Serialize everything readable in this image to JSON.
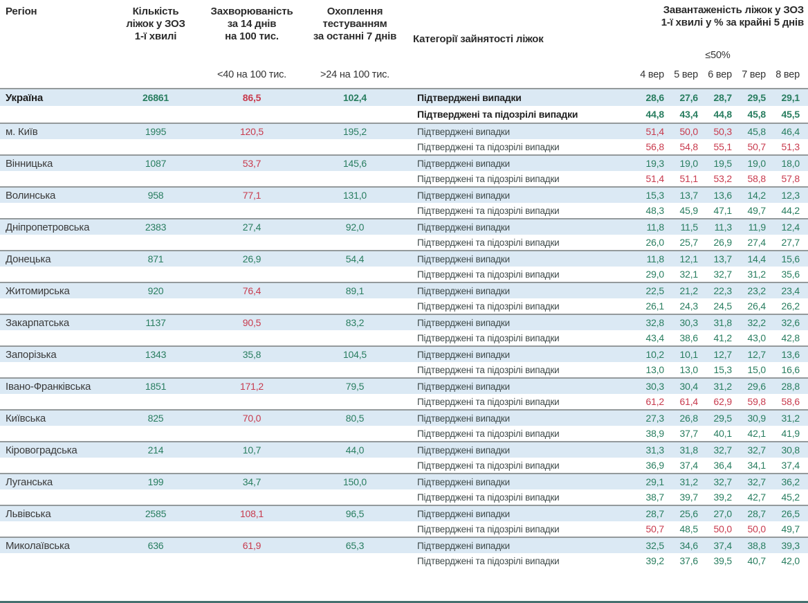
{
  "header": {
    "region": "Регіон",
    "beds_lines": [
      "Кількість",
      "ліжок у ЗОЗ",
      "1-ї хвилі"
    ],
    "incidence_lines": [
      "Захворюваність",
      "за 14 днів",
      "на 100 тис."
    ],
    "testing_lines": [
      "Охоплення",
      "тестуванням",
      "за останні 7 днів"
    ],
    "category": "Категорії зайнятості ліжок",
    "occupancy_lines": [
      "Завантаженість ліжок у ЗОЗ",
      "1-ї хвилі у % за крайні 5 днів"
    ],
    "occupancy_threshold": "≤50%",
    "incidence_threshold": "<40 на 100 тис.",
    "testing_threshold": ">24 на 100 тис.",
    "dates": [
      "4 вер",
      "5 вер",
      "6 вер",
      "7 вер",
      "8 вер"
    ]
  },
  "row_labels": {
    "confirmed": "Підтверджені випадки",
    "confirmed_suspected": "Підтверджені та підозрілі випадки"
  },
  "colors": {
    "green": "#287d5f",
    "red": "#c83a4d",
    "row_blue": "#dbe9f4",
    "separator": "#949a9c",
    "bottom_bar": "#44706f"
  },
  "rows": [
    {
      "region": "Україна",
      "bold": true,
      "beds": "26861",
      "incidence": {
        "v": "86,5",
        "c": "r"
      },
      "testing": {
        "v": "102,4",
        "c": "g"
      },
      "confirmed": {
        "values": [
          "28,6",
          "27,6",
          "28,7",
          "29,5",
          "29,1"
        ],
        "colors": "ggggg"
      },
      "suspected": {
        "values": [
          "44,8",
          "43,4",
          "44,8",
          "45,8",
          "45,5"
        ],
        "colors": "ggggg"
      }
    },
    {
      "region": "м. Київ",
      "bold": false,
      "beds": "1995",
      "incidence": {
        "v": "120,5",
        "c": "r"
      },
      "testing": {
        "v": "195,2",
        "c": "g"
      },
      "confirmed": {
        "values": [
          "51,4",
          "50,0",
          "50,3",
          "45,8",
          "46,4"
        ],
        "colors": "rrrgg"
      },
      "suspected": {
        "values": [
          "56,8",
          "54,8",
          "55,1",
          "50,7",
          "51,3"
        ],
        "colors": "rrrrr"
      }
    },
    {
      "region": "Вінницька",
      "bold": false,
      "beds": "1087",
      "incidence": {
        "v": "53,7",
        "c": "r"
      },
      "testing": {
        "v": "145,6",
        "c": "g"
      },
      "confirmed": {
        "values": [
          "19,3",
          "19,0",
          "19,5",
          "19,0",
          "18,0"
        ],
        "colors": "ggggg"
      },
      "suspected": {
        "values": [
          "51,4",
          "51,1",
          "53,2",
          "58,8",
          "57,8"
        ],
        "colors": "rrrrr"
      }
    },
    {
      "region": "Волинська",
      "bold": false,
      "beds": "958",
      "incidence": {
        "v": "77,1",
        "c": "r"
      },
      "testing": {
        "v": "131,0",
        "c": "g"
      },
      "confirmed": {
        "values": [
          "15,3",
          "13,7",
          "13,6",
          "14,2",
          "12,3"
        ],
        "colors": "ggggg"
      },
      "suspected": {
        "values": [
          "48,3",
          "45,9",
          "47,1",
          "49,7",
          "44,2"
        ],
        "colors": "ggggg"
      }
    },
    {
      "region": "Дніпропетровська",
      "bold": false,
      "beds": "2383",
      "incidence": {
        "v": "27,4",
        "c": "g"
      },
      "testing": {
        "v": "92,0",
        "c": "g"
      },
      "confirmed": {
        "values": [
          "11,8",
          "11,5",
          "11,3",
          "11,9",
          "12,4"
        ],
        "colors": "ggggg"
      },
      "suspected": {
        "values": [
          "26,0",
          "25,7",
          "26,9",
          "27,4",
          "27,7"
        ],
        "colors": "ggggg"
      }
    },
    {
      "region": "Донецька",
      "bold": false,
      "beds": "871",
      "incidence": {
        "v": "26,9",
        "c": "g"
      },
      "testing": {
        "v": "54,4",
        "c": "g"
      },
      "confirmed": {
        "values": [
          "11,8",
          "12,1",
          "13,7",
          "14,4",
          "15,6"
        ],
        "colors": "ggggg"
      },
      "suspected": {
        "values": [
          "29,0",
          "32,1",
          "32,7",
          "31,2",
          "35,6"
        ],
        "colors": "ggggg"
      }
    },
    {
      "region": "Житомирська",
      "bold": false,
      "beds": "920",
      "incidence": {
        "v": "76,4",
        "c": "r"
      },
      "testing": {
        "v": "89,1",
        "c": "g"
      },
      "confirmed": {
        "values": [
          "22,5",
          "21,2",
          "22,3",
          "23,2",
          "23,4"
        ],
        "colors": "ggggg"
      },
      "suspected": {
        "values": [
          "26,1",
          "24,3",
          "24,5",
          "26,4",
          "26,2"
        ],
        "colors": "ggggg"
      }
    },
    {
      "region": "Закарпатська",
      "bold": false,
      "beds": "1137",
      "incidence": {
        "v": "90,5",
        "c": "r"
      },
      "testing": {
        "v": "83,2",
        "c": "g"
      },
      "confirmed": {
        "values": [
          "32,8",
          "30,3",
          "31,8",
          "32,2",
          "32,6"
        ],
        "colors": "ggggg"
      },
      "suspected": {
        "values": [
          "43,4",
          "38,6",
          "41,2",
          "43,0",
          "42,8"
        ],
        "colors": "ggggg"
      }
    },
    {
      "region": "Запорізька",
      "bold": false,
      "beds": "1343",
      "incidence": {
        "v": "35,8",
        "c": "g"
      },
      "testing": {
        "v": "104,5",
        "c": "g"
      },
      "confirmed": {
        "values": [
          "10,2",
          "10,1",
          "12,7",
          "12,7",
          "13,6"
        ],
        "colors": "ggggg"
      },
      "suspected": {
        "values": [
          "13,0",
          "13,0",
          "15,3",
          "15,0",
          "16,6"
        ],
        "colors": "ggggg"
      }
    },
    {
      "region": "Івано-Франківська",
      "bold": false,
      "beds": "1851",
      "incidence": {
        "v": "171,2",
        "c": "r"
      },
      "testing": {
        "v": "79,5",
        "c": "g"
      },
      "confirmed": {
        "values": [
          "30,3",
          "30,4",
          "31,2",
          "29,6",
          "28,8"
        ],
        "colors": "ggggg"
      },
      "suspected": {
        "values": [
          "61,2",
          "61,4",
          "62,9",
          "59,8",
          "58,6"
        ],
        "colors": "rrrrr"
      }
    },
    {
      "region": "Київська",
      "bold": false,
      "beds": "825",
      "incidence": {
        "v": "70,0",
        "c": "r"
      },
      "testing": {
        "v": "80,5",
        "c": "g"
      },
      "confirmed": {
        "values": [
          "27,3",
          "26,8",
          "29,5",
          "30,9",
          "31,2"
        ],
        "colors": "ggggg"
      },
      "suspected": {
        "values": [
          "38,9",
          "37,7",
          "40,1",
          "42,1",
          "41,9"
        ],
        "colors": "ggggg"
      }
    },
    {
      "region": "Кіровоградська",
      "bold": false,
      "beds": "214",
      "incidence": {
        "v": "10,7",
        "c": "g"
      },
      "testing": {
        "v": "44,0",
        "c": "g"
      },
      "confirmed": {
        "values": [
          "31,3",
          "31,8",
          "32,7",
          "32,7",
          "30,8"
        ],
        "colors": "ggggg"
      },
      "suspected": {
        "values": [
          "36,9",
          "37,4",
          "36,4",
          "34,1",
          "37,4"
        ],
        "colors": "ggggg"
      }
    },
    {
      "region": "Луганська",
      "bold": false,
      "beds": "199",
      "incidence": {
        "v": "34,7",
        "c": "g"
      },
      "testing": {
        "v": "150,0",
        "c": "g"
      },
      "confirmed": {
        "values": [
          "29,1",
          "31,2",
          "32,7",
          "32,7",
          "36,2"
        ],
        "colors": "ggggg"
      },
      "suspected": {
        "values": [
          "38,7",
          "39,7",
          "39,2",
          "42,7",
          "45,2"
        ],
        "colors": "ggggg"
      }
    },
    {
      "region": "Львівська",
      "bold": false,
      "beds": "2585",
      "incidence": {
        "v": "108,1",
        "c": "r"
      },
      "testing": {
        "v": "96,5",
        "c": "g"
      },
      "confirmed": {
        "values": [
          "28,7",
          "25,6",
          "27,0",
          "28,7",
          "26,5"
        ],
        "colors": "ggggg"
      },
      "suspected": {
        "values": [
          "50,7",
          "48,5",
          "50,0",
          "50,0",
          "49,7"
        ],
        "colors": "rgrrg"
      }
    },
    {
      "region": "Миколаївська",
      "bold": false,
      "beds": "636",
      "incidence": {
        "v": "61,9",
        "c": "r"
      },
      "testing": {
        "v": "65,3",
        "c": "g"
      },
      "confirmed": {
        "values": [
          "32,5",
          "34,6",
          "37,4",
          "38,8",
          "39,3"
        ],
        "colors": "ggggg"
      },
      "suspected": {
        "values": [
          "39,2",
          "37,6",
          "39,5",
          "40,7",
          "42,0"
        ],
        "colors": "ggggg"
      }
    }
  ]
}
